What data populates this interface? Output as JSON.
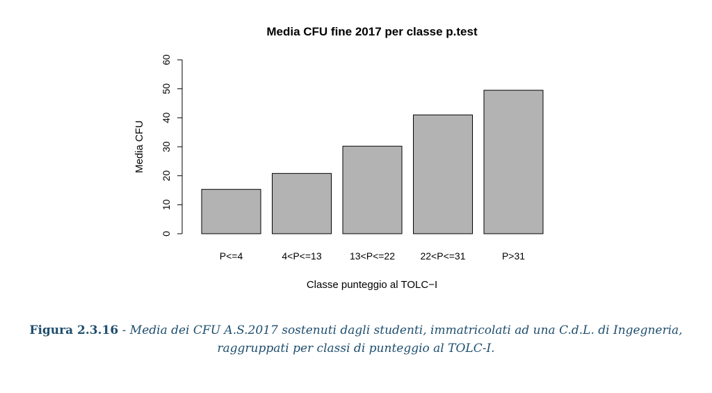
{
  "chart_data": {
    "type": "bar",
    "title": "Media CFU fine 2017 per classe p.test",
    "xlabel": "Classe punteggio al TOLC−I",
    "ylabel": "Media CFU",
    "categories": [
      "P<=4",
      "4<P<=13",
      "13<P<=22",
      "22<P<=31",
      "P>31"
    ],
    "values": [
      15.3,
      20.8,
      30.2,
      41.0,
      49.5
    ],
    "ylim": [
      0,
      60
    ],
    "yticks": [
      "0",
      "10",
      "20",
      "30",
      "40",
      "50",
      "60"
    ],
    "colors": {
      "bar_fill": "#b3b3b3",
      "bar_stroke": "#000000"
    },
    "grid": false,
    "legend": "none"
  },
  "caption": {
    "label": "Figura 2.3.16",
    "separator": " - ",
    "line1": "Media dei CFU A.S.2017 sostenuti dagli studenti, immatricolati ad una C.d.L. di Ingegneria,",
    "line2": "raggruppati per classi di punteggio al TOLC-I."
  }
}
